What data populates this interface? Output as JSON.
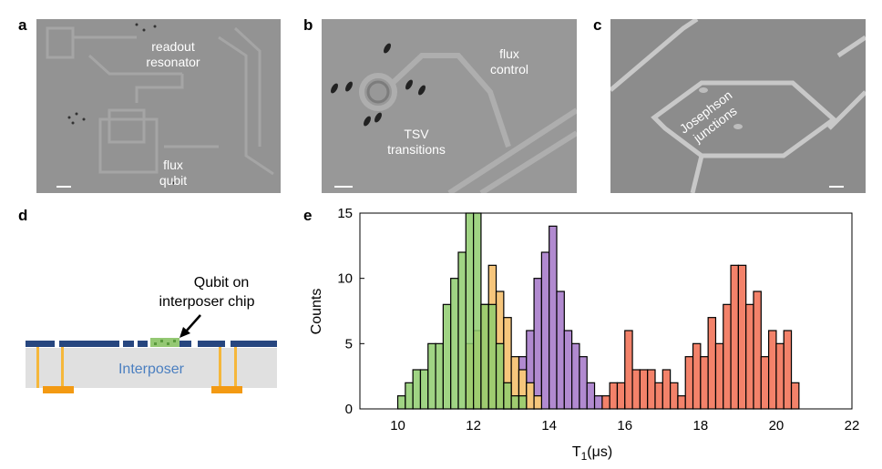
{
  "panels": {
    "a": {
      "label": "a",
      "texts": {
        "resonator_line1": "readout",
        "resonator_line2": "resonator",
        "qubit_line1": "flux",
        "qubit_line2": "qubit"
      }
    },
    "b": {
      "label": "b",
      "texts": {
        "flux_line1": "flux",
        "flux_line2": "control",
        "tsv_line1": "TSV",
        "tsv_line2": "transitions"
      }
    },
    "c": {
      "label": "c",
      "texts": {
        "jj_line1": "Josephson",
        "jj_line2": "junctions"
      }
    },
    "d": {
      "label": "d",
      "texts": {
        "qubit_line1": "Qubit on",
        "qubit_line2": "interposer chip",
        "interposer": "Interposer"
      }
    },
    "e": {
      "label": "e"
    }
  },
  "colors": {
    "sem_bg": "#8f8f8f",
    "metal": "#27467f",
    "substrate": "#e0e0e0",
    "via": "#f5b73b",
    "bump": "#f39a13",
    "qubit_green": "#94c873",
    "interposer_text": "#4b7fc0"
  },
  "chart_data": {
    "type": "histogram",
    "xlabel_main": "T",
    "xlabel_sub": "1",
    "xlabel_unit": "(μs)",
    "ylabel": "Counts",
    "xlim": [
      9,
      22
    ],
    "ylim": [
      0,
      15
    ],
    "xticks": [
      10,
      12,
      14,
      16,
      18,
      20,
      22
    ],
    "yticks": [
      0,
      5,
      10,
      15
    ],
    "bin_width": 0.2,
    "series": [
      {
        "color": "#f3826a",
        "bins": [
          [
            15.4,
            1
          ],
          [
            15.6,
            2
          ],
          [
            15.8,
            2
          ],
          [
            16.0,
            6
          ],
          [
            16.2,
            3
          ],
          [
            16.4,
            3
          ],
          [
            16.6,
            3
          ],
          [
            16.8,
            2
          ],
          [
            17.0,
            3
          ],
          [
            17.2,
            2
          ],
          [
            17.4,
            1
          ],
          [
            17.6,
            4
          ],
          [
            17.8,
            5
          ],
          [
            18.0,
            4
          ],
          [
            18.2,
            7
          ],
          [
            18.4,
            5
          ],
          [
            18.6,
            8
          ],
          [
            18.8,
            11
          ],
          [
            19.0,
            11
          ],
          [
            19.2,
            8
          ],
          [
            19.4,
            9
          ],
          [
            19.6,
            4
          ],
          [
            19.8,
            6
          ],
          [
            20.0,
            5
          ],
          [
            20.2,
            6
          ],
          [
            20.4,
            2
          ]
        ]
      },
      {
        "color": "#b18ad0",
        "bins": [
          [
            12.8,
            1
          ],
          [
            13.0,
            3
          ],
          [
            13.2,
            4
          ],
          [
            13.4,
            6
          ],
          [
            13.6,
            10
          ],
          [
            13.8,
            12
          ],
          [
            14.0,
            14
          ],
          [
            14.2,
            9
          ],
          [
            14.4,
            6
          ],
          [
            14.6,
            5
          ],
          [
            14.8,
            4
          ],
          [
            15.0,
            2
          ],
          [
            15.2,
            1
          ]
        ]
      },
      {
        "color": "#f6c67c",
        "bins": [
          [
            11.8,
            5
          ],
          [
            12.0,
            6
          ],
          [
            12.2,
            8
          ],
          [
            12.4,
            11
          ],
          [
            12.6,
            9
          ],
          [
            12.8,
            7
          ],
          [
            13.0,
            4
          ],
          [
            13.2,
            3
          ],
          [
            13.4,
            2
          ],
          [
            13.6,
            1
          ]
        ]
      },
      {
        "color": "#8fcc6f",
        "opacity": 0.85,
        "bins": [
          [
            10.0,
            1
          ],
          [
            10.2,
            2
          ],
          [
            10.4,
            3
          ],
          [
            10.6,
            3
          ],
          [
            10.8,
            5
          ],
          [
            11.0,
            5
          ],
          [
            11.2,
            8
          ],
          [
            11.4,
            10
          ],
          [
            11.6,
            12
          ],
          [
            11.8,
            15
          ],
          [
            12.0,
            15
          ],
          [
            12.2,
            8
          ],
          [
            12.4,
            8
          ],
          [
            12.6,
            5
          ],
          [
            12.8,
            2
          ],
          [
            13.0,
            1
          ],
          [
            13.2,
            1
          ]
        ]
      }
    ]
  }
}
